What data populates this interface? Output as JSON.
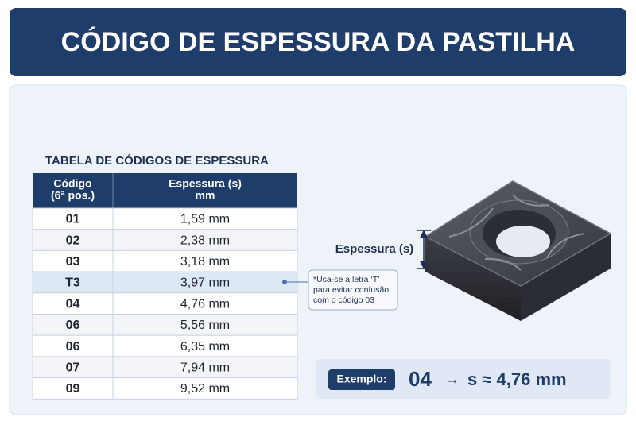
{
  "header": {
    "title": "CÓDIGO DE ESPESSURA DA PASTILHA"
  },
  "table": {
    "title": "TABELA DE CÓDIGOS DE ESPESSURA",
    "headers": [
      [
        "Código",
        "(6ª pos.)"
      ],
      [
        "Espessura (s)",
        "mm"
      ]
    ],
    "rows": [
      [
        "01",
        "1,59 mm"
      ],
      [
        "02",
        "2,38 mm"
      ],
      [
        "03",
        "3,18 mm"
      ],
      [
        "T3",
        "3,97 mm"
      ],
      [
        "04",
        "4,76 mm"
      ],
      [
        "06",
        "5,56 mm"
      ],
      [
        "06",
        "6,35 mm"
      ],
      [
        "07",
        "7,94 mm"
      ],
      [
        "09",
        "9,52 mm"
      ]
    ]
  },
  "note": {
    "lines": [
      "*Usa-se a letra ‘T’",
      "para evitar confusão",
      "com o código 03"
    ]
  },
  "diagram": {
    "label": "Espessura (s)"
  },
  "example": {
    "label": "Exemplo:",
    "code": "04",
    "arrow": "→",
    "result": "s ≈ 4,76 mm"
  }
}
